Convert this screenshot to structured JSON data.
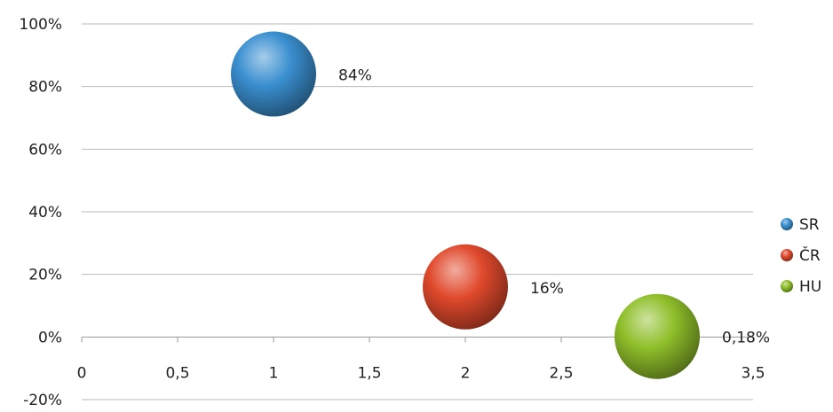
{
  "chart_data": {
    "type": "bubble",
    "xlim": [
      0,
      3.5
    ],
    "ylim": [
      -20,
      100
    ],
    "y_ticks": [
      "100%",
      "80%",
      "60%",
      "40%",
      "20%",
      "0%",
      "-20%"
    ],
    "y_tick_values": [
      100,
      80,
      60,
      40,
      20,
      0,
      -20
    ],
    "x_ticks": [
      "0",
      "0,5",
      "1",
      "1,5",
      "2",
      "2,5",
      "3",
      "3,5"
    ],
    "x_tick_values": [
      0,
      0.5,
      1,
      1.5,
      2,
      2.5,
      3,
      3.5
    ],
    "grid": true,
    "legend_position": "right",
    "series": [
      {
        "name": "SR",
        "x": 1,
        "y": 84,
        "label": "84%",
        "color": "#3a8fd0"
      },
      {
        "name": "ČR",
        "x": 2,
        "y": 16,
        "label": "16%",
        "color": "#e0492c"
      },
      {
        "name": "HU",
        "x": 3,
        "y": 0.18,
        "label": "0,18%",
        "color": "#8fbf2a"
      }
    ]
  }
}
